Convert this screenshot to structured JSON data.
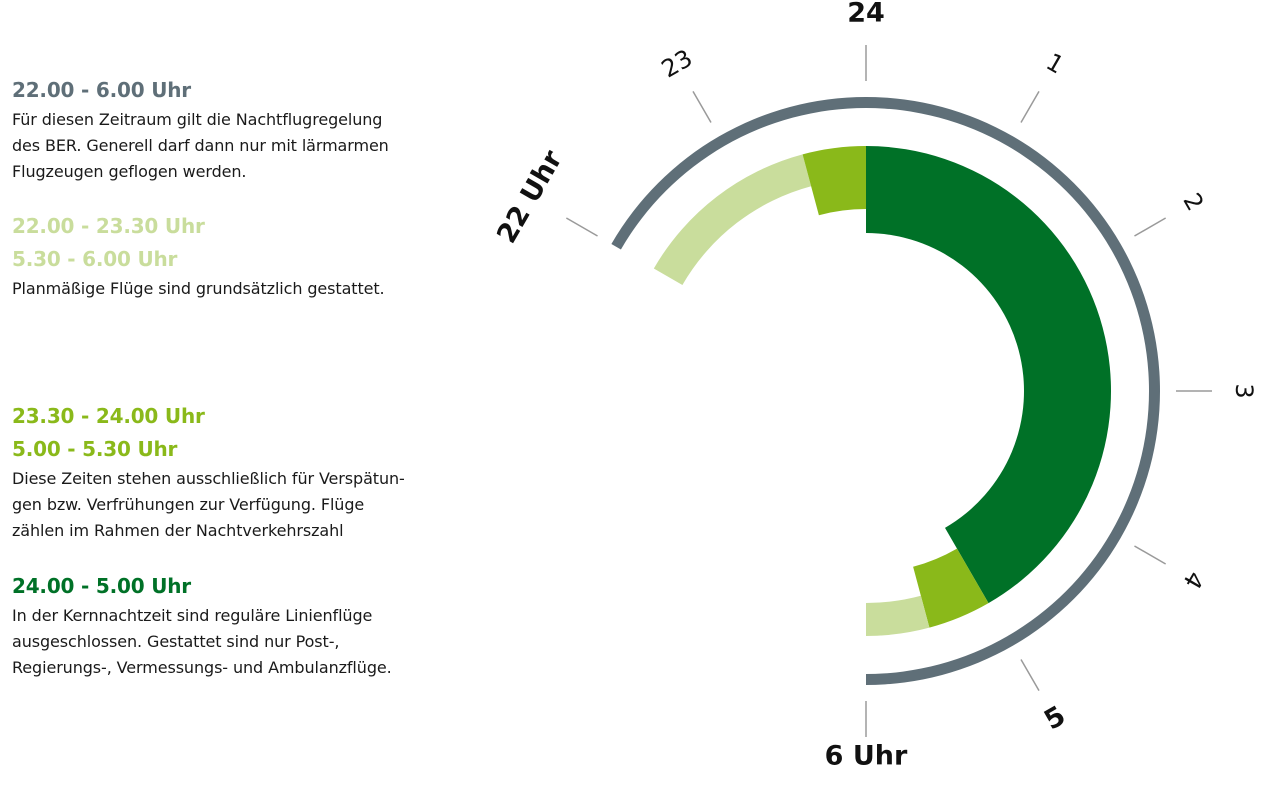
{
  "legend": [
    {
      "headings": [
        "22.00 - 6.00 Uhr"
      ],
      "color": "#5f6f78",
      "text": [
        "Für diesen Zeitraum gilt die Nachtflugregelung",
        "des BER. Generell darf dann nur mit lärmarmen",
        "Flugzeugen geflogen werden."
      ]
    },
    {
      "headings": [
        "22.00 - 23.30 Uhr",
        "5.30 - 6.00 Uhr"
      ],
      "color": "#c9dd9c",
      "text": [
        "Planmäßige Flüge sind grundsätzlich gestattet."
      ]
    },
    {
      "headings": [
        "23.30 - 24.00 Uhr",
        "5.00 - 5.30 Uhr"
      ],
      "color": "#8ab91a",
      "text": [
        "Diese Zeiten stehen ausschließlich für Verspätun-",
        "gen bzw. Verfrühungen zur Verfügung. Flüge",
        "zählen im Rahmen der Nachtverkehrszahl"
      ]
    },
    {
      "headings": [
        "24.00 - 5.00 Uhr"
      ],
      "color": "#007127",
      "text": [
        "In der Kernnachtzeit sind reguläre Linienflüge",
        "ausgeschlossen. Gestattet sind nur Post-,",
        "Regierungs-, Vermessungs- und Ambulanzflüge."
      ]
    }
  ],
  "diagram": {
    "outer_ring": {
      "from": 22,
      "to": 6,
      "color": "#5f6f78"
    },
    "segments": [
      {
        "from": 22,
        "to": 23.5,
        "color": "#c9dd9c",
        "band": "light"
      },
      {
        "from": 23.5,
        "to": 24,
        "color": "#8ab91a",
        "band": "mid"
      },
      {
        "from": 24,
        "to": 5,
        "color": "#007127",
        "band": "core"
      },
      {
        "from": 5,
        "to": 5.5,
        "color": "#8ab91a",
        "band": "mid"
      },
      {
        "from": 5.5,
        "to": 6,
        "color": "#c9dd9c",
        "band": "light"
      }
    ],
    "ticks": [
      {
        "hour": 22,
        "label": "22 Uhr",
        "bold": true
      },
      {
        "hour": 23,
        "label": "23",
        "bold": false
      },
      {
        "hour": 24,
        "label": "24",
        "bold": true
      },
      {
        "hour": 1,
        "label": "1",
        "bold": false
      },
      {
        "hour": 2,
        "label": "2",
        "bold": false
      },
      {
        "hour": 3,
        "label": "3",
        "bold": false
      },
      {
        "hour": 4,
        "label": "4",
        "bold": false
      },
      {
        "hour": 5,
        "label": "5",
        "bold": true
      },
      {
        "hour": 6,
        "label": "6 Uhr",
        "bold": true
      }
    ]
  }
}
